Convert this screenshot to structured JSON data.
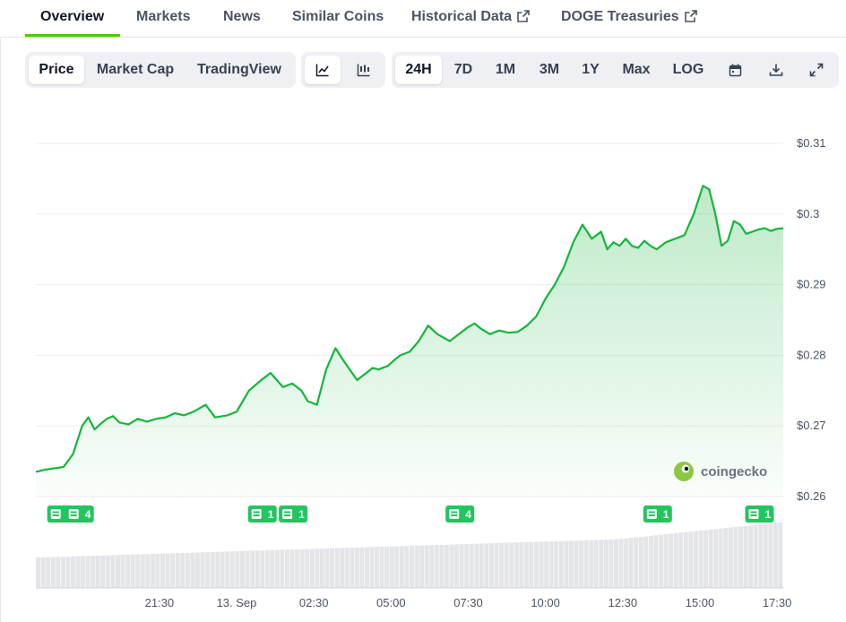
{
  "tabs": [
    {
      "label": "Overview",
      "active": true
    },
    {
      "label": "Markets"
    },
    {
      "label": "News"
    },
    {
      "label": "Similar Coins"
    },
    {
      "label": "Historical Data",
      "external": true
    },
    {
      "label": "DOGE Treasuries",
      "external": true
    }
  ],
  "toolbar": {
    "view_options": [
      "Price",
      "Market Cap",
      "TradingView"
    ],
    "view_selected": "Price",
    "chart_types": [
      {
        "icon": "line-chart-icon",
        "active": true
      },
      {
        "icon": "candlestick-chart-icon"
      }
    ],
    "ranges": [
      "24H",
      "7D",
      "1M",
      "3M",
      "1Y",
      "Max"
    ],
    "range_selected": "24H",
    "log_label": "LOG",
    "action_icons": [
      "calendar-icon",
      "download-icon",
      "expand-icon"
    ]
  },
  "chart_data": {
    "type": "area",
    "line_color": "#16b53c",
    "fill_color": "#16b53c",
    "brand": "coingecko",
    "y_ticks": [
      "$0.31",
      "$0.3",
      "$0.29",
      "$0.28",
      "$0.27",
      "$0.26"
    ],
    "y_tick_values": [
      0.31,
      0.3,
      0.29,
      0.28,
      0.27,
      0.26
    ],
    "ylim": [
      0.26,
      0.31
    ],
    "x_ticks": [
      "21:30",
      "13. Sep",
      "02:30",
      "05:00",
      "07:30",
      "10:00",
      "12:30",
      "15:00",
      "17:30"
    ],
    "x_tick_hours": [
      21.5,
      24,
      26.5,
      29,
      31.5,
      34,
      36.5,
      39,
      41.5
    ],
    "xlim_hours": [
      17.5,
      41.7
    ],
    "series": [
      {
        "x_hours": [
          17.5,
          17.8,
          18.1,
          18.4,
          18.7,
          19.0,
          19.2,
          19.4,
          19.6,
          19.8,
          20.0,
          20.2,
          20.5,
          20.8,
          21.1,
          21.4,
          21.7,
          22.0,
          22.3,
          22.6,
          23.0,
          23.3,
          23.7,
          24.0,
          24.4,
          24.8,
          25.1,
          25.5,
          25.8,
          26.1,
          26.3,
          26.6,
          26.9,
          27.2,
          27.5,
          27.9,
          28.2,
          28.4,
          28.6,
          28.9,
          29.1,
          29.3,
          29.6,
          29.9,
          30.2,
          30.5,
          30.9,
          31.2,
          31.5,
          31.7,
          31.9,
          32.2,
          32.5,
          32.8,
          33.1,
          33.4,
          33.7,
          34.0,
          34.3,
          34.6,
          34.9,
          35.2,
          35.5,
          35.8,
          36.0,
          36.2,
          36.4,
          36.6,
          36.8,
          37.0,
          37.2,
          37.4,
          37.6,
          37.9,
          38.2,
          38.5,
          38.8,
          39.1,
          39.3,
          39.5,
          39.7,
          39.9,
          40.1,
          40.3,
          40.5,
          40.7,
          40.9,
          41.1,
          41.3,
          41.5,
          41.7
        ],
        "values": [
          0.2635,
          0.2638,
          0.264,
          0.2642,
          0.266,
          0.27,
          0.2712,
          0.2695,
          0.2703,
          0.271,
          0.2714,
          0.2705,
          0.2702,
          0.271,
          0.2706,
          0.271,
          0.2712,
          0.2718,
          0.2715,
          0.272,
          0.273,
          0.2712,
          0.2715,
          0.272,
          0.275,
          0.2765,
          0.2775,
          0.2755,
          0.276,
          0.275,
          0.2735,
          0.273,
          0.278,
          0.281,
          0.279,
          0.2765,
          0.2775,
          0.2782,
          0.278,
          0.2785,
          0.2793,
          0.28,
          0.2805,
          0.282,
          0.2842,
          0.283,
          0.282,
          0.283,
          0.284,
          0.2845,
          0.2838,
          0.283,
          0.2835,
          0.2832,
          0.2833,
          0.2842,
          0.2855,
          0.288,
          0.29,
          0.2925,
          0.296,
          0.2985,
          0.2965,
          0.2975,
          0.295,
          0.296,
          0.2955,
          0.2965,
          0.2955,
          0.2952,
          0.2962,
          0.2955,
          0.295,
          0.296,
          0.2965,
          0.297,
          0.3,
          0.304,
          0.3035,
          0.3,
          0.2955,
          0.2962,
          0.299,
          0.2985,
          0.2972,
          0.2975,
          0.2978,
          0.298,
          0.2976,
          0.2979,
          0.298
        ]
      }
    ],
    "news_markers": [
      {
        "hour": 18.1,
        "count": "4",
        "items": 2
      },
      {
        "hour": 24.6,
        "count": "1",
        "items": 1
      },
      {
        "hour": 25.6,
        "count": "1",
        "items": 1
      },
      {
        "hour": 31.0,
        "count": "4",
        "items": 1
      },
      {
        "hour": 37.4,
        "count": "1",
        "items": 1
      },
      {
        "hour": 40.7,
        "count": "1",
        "items": 1
      }
    ]
  }
}
